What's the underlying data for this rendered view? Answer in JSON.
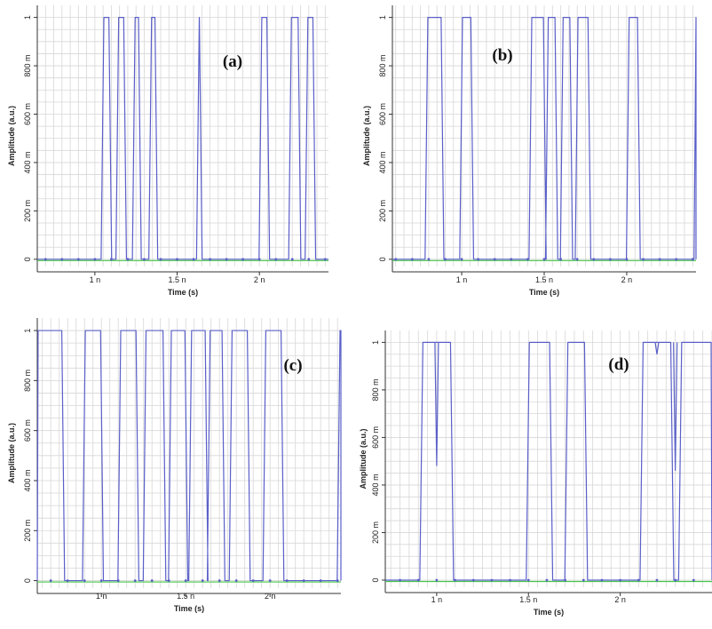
{
  "colors": {
    "signal": "#5a5fc8",
    "baseline_trace": "#44c44a",
    "grid": "#d7d7d7",
    "axis": "#333333",
    "dots": "#5a5fc8"
  },
  "chart_data": [
    {
      "type": "line",
      "panel_label": "(a)",
      "xlabel": "Time (s)",
      "ylabel": "Amplitude (a.u.)",
      "xlim": [
        0.65,
        2.42
      ],
      "ylim": [
        -0.03,
        1.05
      ],
      "xticks": [
        {
          "v": 1.0,
          "label": "1 n"
        },
        {
          "v": 1.5,
          "label": "1.5 n"
        },
        {
          "v": 2.0,
          "label": "2 n"
        }
      ],
      "yticks": [
        {
          "v": 0,
          "label": "0"
        },
        {
          "v": 0.2,
          "label": "200 m"
        },
        {
          "v": 0.4,
          "label": "400 m"
        },
        {
          "v": 0.6,
          "label": "600 m"
        },
        {
          "v": 0.8,
          "label": "800 m"
        },
        {
          "v": 1.0,
          "label": "1"
        }
      ],
      "series": [
        {
          "pulses": [
            [
              1.05,
              1.09
            ],
            [
              1.14,
              1.18
            ],
            [
              1.24,
              1.27
            ],
            [
              1.34,
              1.37
            ],
            [
              1.63,
              1.64
            ],
            [
              2.01,
              2.05
            ],
            [
              2.19,
              2.24
            ],
            [
              2.29,
              2.33
            ]
          ]
        }
      ]
    },
    {
      "type": "line",
      "panel_label": "(b)",
      "xlabel": "Time (s)",
      "ylabel": "Amplitude (a.u.)",
      "xlim": [
        0.58,
        2.42
      ],
      "ylim": [
        -0.03,
        1.05
      ],
      "xticks": [
        {
          "v": 1.0,
          "label": "1 n"
        },
        {
          "v": 1.5,
          "label": "1.5 n"
        },
        {
          "v": 2.0,
          "label": "2 n"
        }
      ],
      "yticks": [
        {
          "v": 0,
          "label": "0"
        },
        {
          "v": 0.2,
          "label": "200 m"
        },
        {
          "v": 0.4,
          "label": "400 m"
        },
        {
          "v": 0.6,
          "label": "600 m"
        },
        {
          "v": 0.8,
          "label": "800 m"
        },
        {
          "v": 1.0,
          "label": "1"
        }
      ],
      "series": [
        {
          "pulses": [
            [
              0.79,
              0.88
            ],
            [
              1.0,
              1.06
            ],
            [
              1.42,
              1.5
            ],
            [
              1.52,
              1.57
            ],
            [
              1.61,
              1.66
            ],
            [
              1.7,
              1.77
            ],
            [
              2.01,
              2.07
            ],
            [
              2.42,
              2.5
            ]
          ]
        }
      ]
    },
    {
      "type": "line",
      "panel_label": "(c)",
      "xlabel": "Time (s)",
      "ylabel": "Amplitude (a.u.)",
      "xlim": [
        0.62,
        2.42
      ],
      "ylim": [
        -0.03,
        1.05
      ],
      "xticks": [
        {
          "v": 1.0,
          "label": "1 n"
        },
        {
          "v": 1.5,
          "label": "1.5 n"
        },
        {
          "v": 2.0,
          "label": "2 n"
        }
      ],
      "yticks": [
        {
          "v": 0,
          "label": "0"
        },
        {
          "v": 0.2,
          "label": "200 m"
        },
        {
          "v": 0.4,
          "label": "400 m"
        },
        {
          "v": 0.6,
          "label": "600 m"
        },
        {
          "v": 0.8,
          "label": "800 m"
        },
        {
          "v": 1.0,
          "label": "1"
        }
      ],
      "series": [
        {
          "pulses": [
            [
              0.62,
              0.77
            ],
            [
              0.9,
              1.0
            ],
            [
              1.11,
              1.21
            ],
            [
              1.26,
              1.37
            ],
            [
              1.41,
              1.5
            ],
            [
              1.53,
              1.62
            ],
            [
              1.64,
              1.72
            ],
            [
              1.77,
              1.87
            ],
            [
              1.97,
              2.07
            ],
            [
              2.41,
              2.5
            ]
          ]
        }
      ]
    },
    {
      "type": "line",
      "panel_label": "(d)",
      "xlabel": "Time (s)",
      "ylabel": "Amplitude (a.u.)",
      "xlim": [
        0.72,
        2.5
      ],
      "ylim": [
        -0.03,
        1.05
      ],
      "xticks": [
        {
          "v": 1.0,
          "label": "1 n"
        },
        {
          "v": 1.5,
          "label": "1.5 n"
        },
        {
          "v": 2.0,
          "label": "2 n"
        }
      ],
      "yticks": [
        {
          "v": 0,
          "label": "0"
        },
        {
          "v": 0.2,
          "label": "200 m"
        },
        {
          "v": 0.4,
          "label": "400 m"
        },
        {
          "v": 0.6,
          "label": "600 m"
        },
        {
          "v": 0.8,
          "label": "800 m"
        },
        {
          "v": 1.0,
          "label": "1"
        }
      ],
      "series": [
        {
          "pulses": [
            [
              0.92,
              1.08
            ],
            [
              1.5,
              1.62
            ],
            [
              1.71,
              1.81
            ],
            [
              2.12,
              2.28
            ],
            [
              2.33,
              2.5
            ]
          ],
          "dips": [
            [
              1.0,
              0.48
            ],
            [
              2.2,
              0.95
            ],
            [
              2.3,
              0.46
            ]
          ]
        }
      ]
    }
  ]
}
